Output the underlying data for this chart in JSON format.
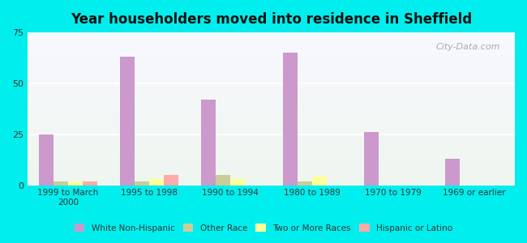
{
  "title": "Year householders moved into residence in Sheffield",
  "categories": [
    "1999 to March\n2000",
    "1995 to 1998",
    "1990 to 1994",
    "1980 to 1989",
    "1970 to 1979",
    "1969 or earlier"
  ],
  "white_non_hispanic": [
    25,
    63,
    42,
    65,
    26,
    13
  ],
  "other_race": [
    2,
    2,
    5,
    2,
    0,
    0
  ],
  "two_or_more_races": [
    2,
    3,
    3,
    4,
    0,
    0
  ],
  "hispanic_or_latino": [
    2,
    5,
    0,
    0,
    0,
    0
  ],
  "white_color": "#cc99cc",
  "other_race_color": "#cccc99",
  "two_or_more_color": "#ffff99",
  "hispanic_color": "#ffaaaa",
  "bg_outer": "#00eeee",
  "bg_plot_top": "#f5f5ff",
  "bg_plot_bottom": "#e8f5e8",
  "ylim": [
    0,
    75
  ],
  "yticks": [
    0,
    25,
    50,
    75
  ],
  "bar_width": 0.18,
  "watermark": "City-Data.com"
}
